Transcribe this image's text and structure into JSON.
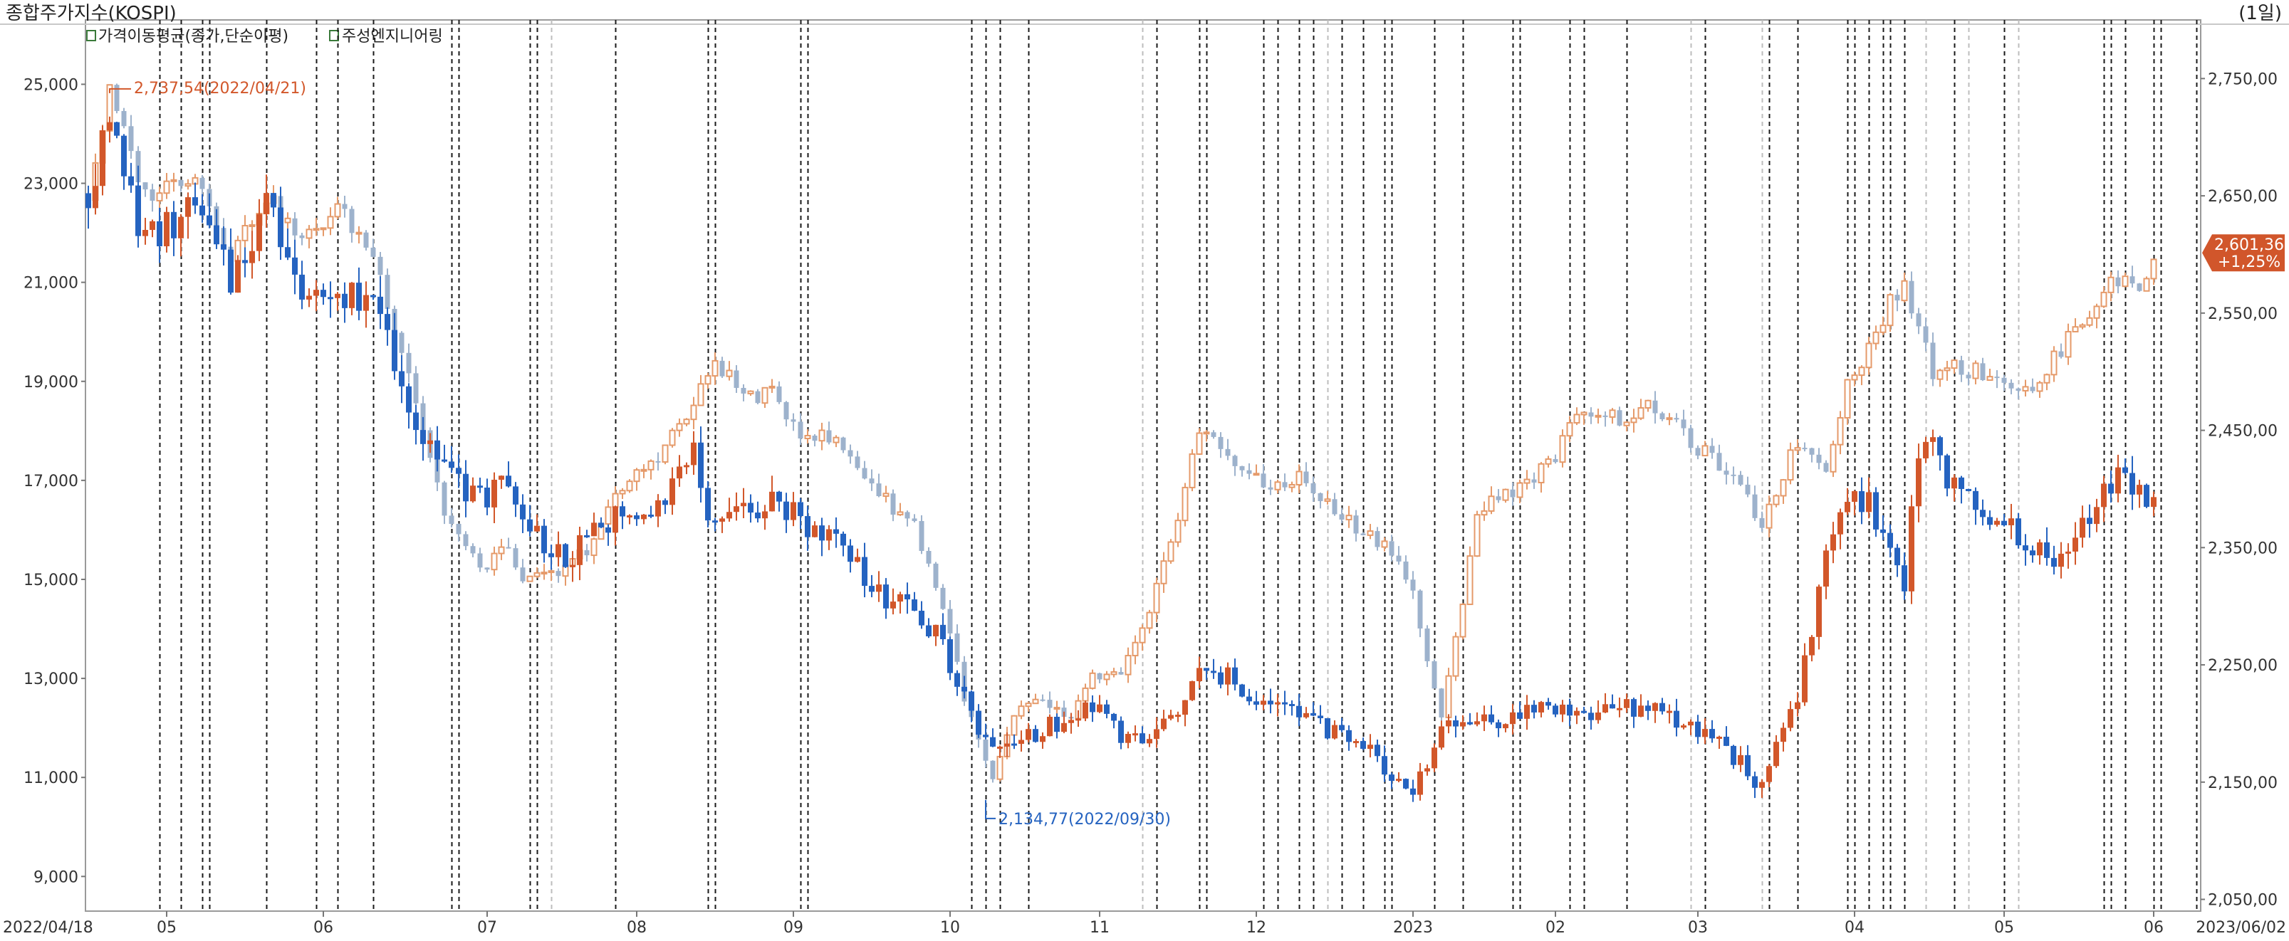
{
  "header": {
    "title": "종합주가지수(KOSPI)",
    "period": "(1일)",
    "legend": [
      {
        "label": "가격이동평균(종가,단순이평)"
      },
      {
        "label": "주성엔지니어링"
      }
    ]
  },
  "colors": {
    "up": "#d2572a",
    "down": "#2563c0",
    "kospi_up": "#e59a6a",
    "kospi_down": "#9db2cc",
    "last_badge": "#d1562b"
  },
  "chart_data": {
    "type": "candlestick",
    "x_axis": {
      "start_label": "2022/04/18",
      "end_label": "2023/06/02",
      "ticks": [
        "05",
        "06",
        "07",
        "08",
        "09",
        "10",
        "11",
        "12",
        "2023",
        "02",
        "03",
        "04",
        "05",
        "06"
      ]
    },
    "left_axis": {
      "range": [
        8300,
        26300
      ],
      "ticks": [
        "9,000",
        "11,000",
        "13,000",
        "15,000",
        "17,000",
        "19,000",
        "21,000",
        "23,000",
        "25,000"
      ],
      "tick_values": [
        9000,
        11000,
        13000,
        15000,
        17000,
        19000,
        21000,
        23000,
        25000
      ]
    },
    "right_axis": {
      "range": [
        2040,
        2800
      ],
      "ticks": [
        "2,050,00",
        "2,150,00",
        "2,250,00",
        "2,350,00",
        "2,450,00",
        "2,550,00",
        "2,650,00",
        "2,750,00"
      ],
      "tick_values": [
        2050,
        2150,
        2250,
        2350,
        2450,
        2550,
        2650,
        2750
      ]
    },
    "annotations": {
      "high": {
        "label": "2,737,54(2022/04/21)",
        "value": 2737.54
      },
      "low": {
        "label": "2,134,77(2022/09/30)",
        "value": 2134.77
      }
    },
    "last_value": {
      "price": "2,601,36",
      "change": "+1,25%",
      "value": 2601.36
    },
    "stock_anchors": [
      [
        0,
        22800
      ],
      [
        3,
        24200
      ],
      [
        8,
        21800
      ],
      [
        15,
        22500
      ],
      [
        20,
        21000
      ],
      [
        25,
        22600
      ],
      [
        30,
        21000
      ],
      [
        35,
        20600
      ],
      [
        40,
        20800
      ],
      [
        45,
        18600
      ],
      [
        50,
        17200
      ],
      [
        55,
        16600
      ],
      [
        58,
        17000
      ],
      [
        62,
        16100
      ],
      [
        67,
        15300
      ],
      [
        70,
        15800
      ],
      [
        75,
        16400
      ],
      [
        80,
        16600
      ],
      [
        85,
        17500
      ],
      [
        88,
        15900
      ],
      [
        92,
        16300
      ],
      [
        96,
        16700
      ],
      [
        100,
        16200
      ],
      [
        105,
        15800
      ],
      [
        108,
        15300
      ],
      [
        112,
        14600
      ],
      [
        116,
        14300
      ],
      [
        120,
        13700
      ],
      [
        124,
        12200
      ],
      [
        127,
        11500
      ],
      [
        130,
        11700
      ],
      [
        134,
        12000
      ],
      [
        138,
        12100
      ],
      [
        141,
        12500
      ],
      [
        145,
        11800
      ],
      [
        149,
        11800
      ],
      [
        153,
        12300
      ],
      [
        156,
        13100
      ],
      [
        160,
        13000
      ],
      [
        165,
        12500
      ],
      [
        170,
        12300
      ],
      [
        175,
        11900
      ],
      [
        180,
        11500
      ],
      [
        183,
        11000
      ],
      [
        186,
        10800
      ],
      [
        190,
        11900
      ],
      [
        195,
        12200
      ],
      [
        200,
        12200
      ],
      [
        205,
        12500
      ],
      [
        210,
        12200
      ],
      [
        215,
        12500
      ],
      [
        220,
        12300
      ],
      [
        225,
        12000
      ],
      [
        229,
        11800
      ],
      [
        233,
        11100
      ],
      [
        235,
        10800
      ],
      [
        237,
        11700
      ],
      [
        240,
        12700
      ],
      [
        242,
        14000
      ],
      [
        244,
        15500
      ],
      [
        247,
        16700
      ],
      [
        250,
        16500
      ],
      [
        253,
        15400
      ],
      [
        255,
        15000
      ],
      [
        257,
        17500
      ],
      [
        259,
        18100
      ],
      [
        261,
        17000
      ],
      [
        264,
        16500
      ],
      [
        267,
        16100
      ],
      [
        270,
        16000
      ],
      [
        273,
        15700
      ],
      [
        276,
        15200
      ],
      [
        279,
        15800
      ],
      [
        281,
        16400
      ],
      [
        283,
        16900
      ],
      [
        286,
        17200
      ],
      [
        288,
        16700
      ],
      [
        290,
        16600
      ]
    ],
    "kospi_anchors": [
      [
        0,
        2650
      ],
      [
        3,
        2738
      ],
      [
        8,
        2650
      ],
      [
        15,
        2670
      ],
      [
        20,
        2600
      ],
      [
        25,
        2650
      ],
      [
        30,
        2610
      ],
      [
        35,
        2640
      ],
      [
        40,
        2600
      ],
      [
        45,
        2500
      ],
      [
        50,
        2380
      ],
      [
        55,
        2330
      ],
      [
        58,
        2350
      ],
      [
        62,
        2320
      ],
      [
        67,
        2330
      ],
      [
        70,
        2350
      ],
      [
        75,
        2400
      ],
      [
        80,
        2430
      ],
      [
        85,
        2470
      ],
      [
        88,
        2510
      ],
      [
        92,
        2480
      ],
      [
        96,
        2480
      ],
      [
        100,
        2450
      ],
      [
        105,
        2440
      ],
      [
        108,
        2420
      ],
      [
        112,
        2390
      ],
      [
        116,
        2370
      ],
      [
        120,
        2300
      ],
      [
        124,
        2200
      ],
      [
        127,
        2150
      ],
      [
        130,
        2205
      ],
      [
        134,
        2220
      ],
      [
        138,
        2200
      ],
      [
        141,
        2240
      ],
      [
        145,
        2240
      ],
      [
        149,
        2290
      ],
      [
        153,
        2380
      ],
      [
        156,
        2450
      ],
      [
        160,
        2430
      ],
      [
        165,
        2400
      ],
      [
        170,
        2410
      ],
      [
        175,
        2380
      ],
      [
        180,
        2360
      ],
      [
        183,
        2350
      ],
      [
        186,
        2310
      ],
      [
        190,
        2200
      ],
      [
        195,
        2380
      ],
      [
        200,
        2400
      ],
      [
        205,
        2420
      ],
      [
        210,
        2470
      ],
      [
        215,
        2460
      ],
      [
        220,
        2470
      ],
      [
        225,
        2440
      ],
      [
        229,
        2420
      ],
      [
        233,
        2390
      ],
      [
        235,
        2370
      ],
      [
        237,
        2400
      ],
      [
        240,
        2440
      ],
      [
        242,
        2430
      ],
      [
        244,
        2420
      ],
      [
        247,
        2490
      ],
      [
        250,
        2520
      ],
      [
        253,
        2560
      ],
      [
        255,
        2570
      ],
      [
        257,
        2540
      ],
      [
        259,
        2500
      ],
      [
        261,
        2510
      ],
      [
        264,
        2500
      ],
      [
        267,
        2500
      ],
      [
        270,
        2490
      ],
      [
        273,
        2480
      ],
      [
        276,
        2510
      ],
      [
        279,
        2540
      ],
      [
        281,
        2550
      ],
      [
        283,
        2570
      ],
      [
        286,
        2580
      ],
      [
        288,
        2570
      ],
      [
        290,
        2600
      ]
    ],
    "solid_markers": [
      65,
      148,
      174,
      225,
      235,
      258,
      264,
      271
    ],
    "dashed_markers": [
      10,
      13,
      16,
      17,
      25,
      32,
      35,
      40,
      51,
      52,
      62,
      63,
      74,
      87,
      88,
      100,
      101,
      124,
      126,
      128,
      132,
      150,
      156,
      157,
      165,
      167,
      170,
      172,
      176,
      179,
      182,
      183,
      189,
      193,
      200,
      201,
      208,
      210,
      216,
      227,
      235,
      236,
      240,
      247,
      248,
      250,
      252,
      253,
      255,
      262,
      264,
      269,
      283,
      284,
      286,
      290,
      291,
      296
    ],
    "last_index": 290
  }
}
